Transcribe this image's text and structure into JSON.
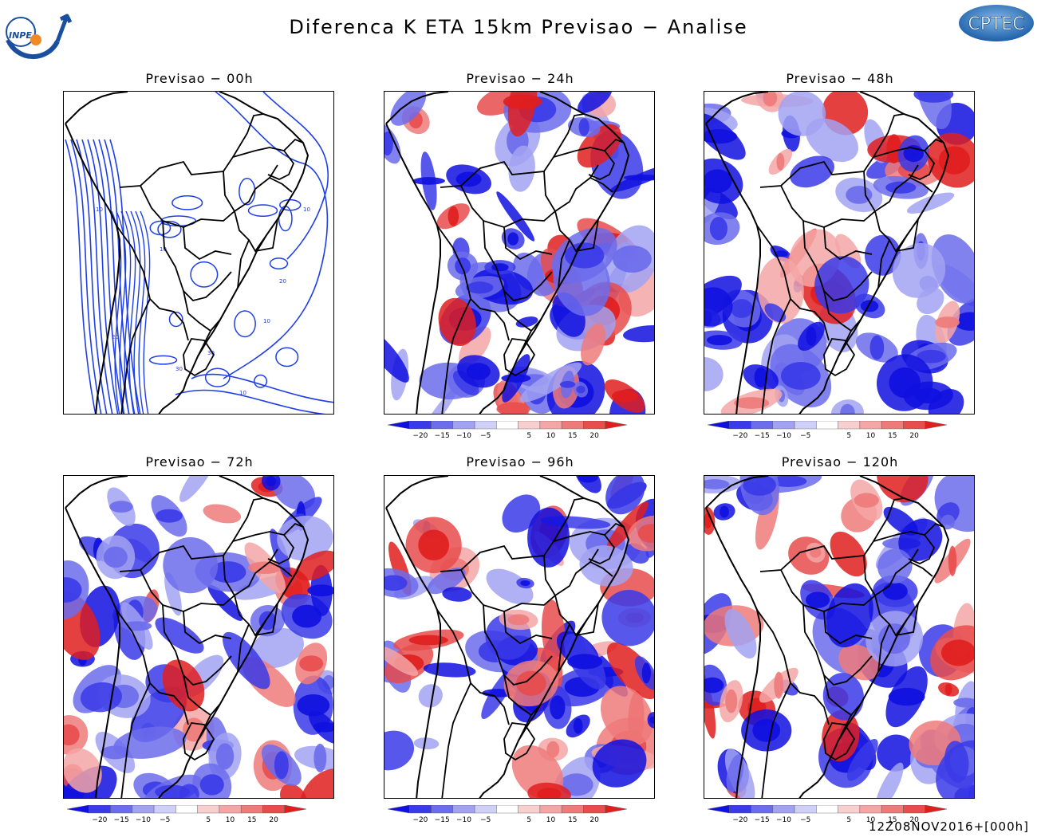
{
  "header": {
    "title": "Diferenca K ETA 15km Previsao − Analise",
    "left_logo_text": "INPE",
    "right_logo_text": "CPTEC"
  },
  "panels": [
    {
      "title": "Previsao − 00h",
      "kind": "contour"
    },
    {
      "title": "Previsao − 24h",
      "kind": "shaded"
    },
    {
      "title": "Previsao − 48h",
      "kind": "shaded"
    },
    {
      "title": "Previsao − 72h",
      "kind": "shaded"
    },
    {
      "title": "Previsao − 96h",
      "kind": "shaded"
    },
    {
      "title": "Previsao − 120h",
      "kind": "shaded"
    }
  ],
  "colorbar": {
    "labels": [
      "−20",
      "−15",
      "−10",
      "−5",
      "5",
      "10",
      "15",
      "20"
    ],
    "colors": [
      "#1010e0",
      "#3a3ae8",
      "#6c6cec",
      "#a2a2f2",
      "#cfcff8",
      "#ffffff",
      "#f8cfcf",
      "#f4a6a6",
      "#ee7a7a",
      "#e84c4c",
      "#e01e1e"
    ]
  },
  "contour_labels": [
    "10",
    "20",
    "30",
    "10",
    "20",
    "30",
    "10",
    "10",
    "10"
  ],
  "footer": {
    "timestamp": "12Z08NOV2016+[000h]"
  }
}
